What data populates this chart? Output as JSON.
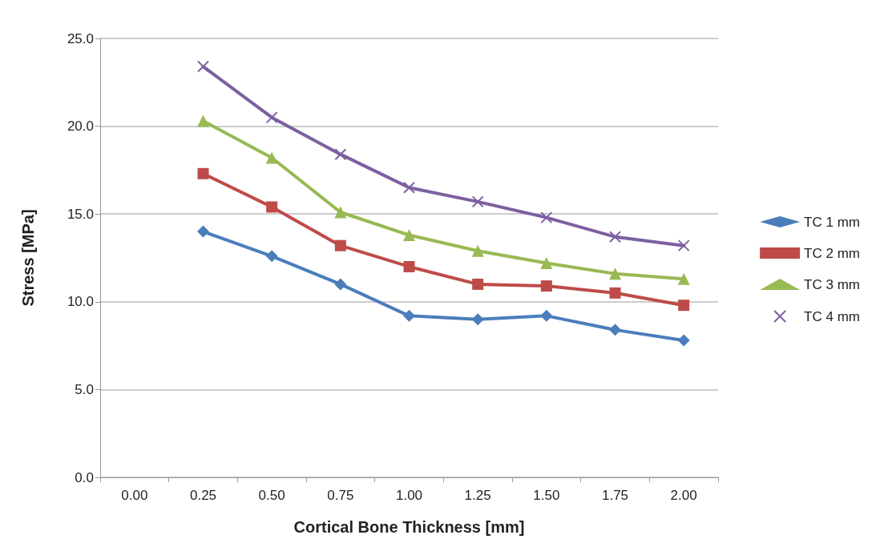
{
  "chart_data": {
    "type": "line",
    "xlabel": "Cortical Bone Thickness [mm]",
    "ylabel": "Stress [MPa]",
    "categories": [
      "0.00",
      "0.25",
      "0.50",
      "0.75",
      "1.00",
      "1.25",
      "1.50",
      "1.75",
      "2.00"
    ],
    "series": [
      {
        "name": "TC 1 mm",
        "color": "#4a7ebb",
        "marker": "diamond",
        "values": [
          null,
          14.0,
          12.6,
          11.0,
          9.2,
          9.0,
          9.2,
          8.4,
          7.8
        ]
      },
      {
        "name": "TC 2 mm",
        "color": "#be4b48",
        "marker": "square",
        "values": [
          null,
          17.3,
          15.4,
          13.2,
          12.0,
          11.0,
          10.9,
          10.5,
          9.8
        ]
      },
      {
        "name": "TC 3 mm",
        "color": "#98b954",
        "marker": "triangle",
        "values": [
          null,
          20.3,
          18.2,
          15.1,
          13.8,
          12.9,
          12.2,
          11.6,
          11.3
        ]
      },
      {
        "name": "TC 4 mm",
        "color": "#7d60a0",
        "marker": "cross",
        "values": [
          null,
          23.4,
          20.5,
          18.4,
          16.5,
          15.7,
          14.8,
          13.7,
          13.2
        ]
      }
    ],
    "ylim": [
      0,
      25
    ],
    "yticks": [
      {
        "value": 0,
        "label": "0.0"
      },
      {
        "value": 5,
        "label": "5.0"
      },
      {
        "value": 10,
        "label": "10.0"
      },
      {
        "value": 15,
        "label": "15.0"
      },
      {
        "value": 20,
        "label": "20.0"
      },
      {
        "value": 25,
        "label": "25.0"
      }
    ],
    "grid": "y",
    "legend": "right"
  }
}
